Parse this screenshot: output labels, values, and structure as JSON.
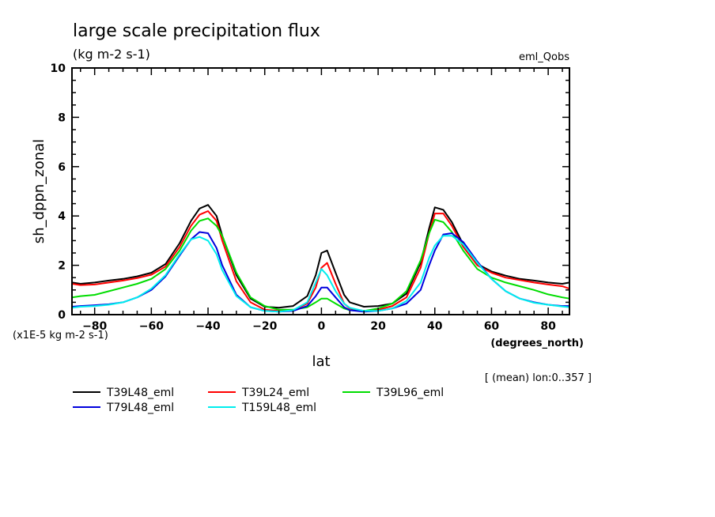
{
  "chart_data": {
    "type": "line",
    "title": "large scale precipitation flux",
    "subtitle": "(kg m-2 s-1)",
    "dataset_label": "eml_Qobs",
    "xlabel": "lat",
    "x_units": "(degrees_north)",
    "ylabel": "sh_dppn_zonal",
    "y_scale_note": "(x1E-5 kg m-2 s-1)",
    "averaging_note": "[ (mean) lon:0..357 ]",
    "xlim": [
      -88,
      87.5
    ],
    "ylim": [
      0,
      10
    ],
    "x_ticks": [
      -80,
      -60,
      -40,
      -20,
      0,
      20,
      40,
      60,
      80
    ],
    "x_tick_labels": [
      "-80",
      "-60",
      "-40",
      "-20",
      "0",
      "20",
      "40",
      "60",
      "80"
    ],
    "y_ticks": [
      0,
      2,
      4,
      6,
      8,
      10
    ],
    "y_tick_labels": [
      "0",
      "2",
      "4",
      "6",
      "8",
      "10"
    ],
    "grid": false,
    "legend_position": "bottom-left",
    "x": [
      -88,
      -85,
      -80,
      -75,
      -70,
      -65,
      -60,
      -55,
      -50,
      -46,
      -43,
      -40,
      -37,
      -35,
      -30,
      -25,
      -20,
      -15,
      -10,
      -5,
      -2,
      0,
      2,
      5,
      8,
      10,
      15,
      20,
      25,
      30,
      35,
      38,
      40,
      43,
      46,
      50,
      55,
      60,
      65,
      70,
      75,
      80,
      85,
      87.5
    ],
    "series": [
      {
        "name": "T39L48_eml",
        "color": "#000000",
        "values": [
          1.3,
          1.25,
          1.3,
          1.38,
          1.45,
          1.55,
          1.7,
          2.05,
          2.9,
          3.8,
          4.3,
          4.45,
          4.0,
          3.2,
          1.6,
          0.65,
          0.32,
          0.28,
          0.35,
          0.75,
          1.6,
          2.5,
          2.6,
          1.7,
          0.8,
          0.5,
          0.32,
          0.35,
          0.45,
          0.85,
          2.1,
          3.5,
          4.35,
          4.25,
          3.75,
          2.85,
          2.05,
          1.75,
          1.58,
          1.45,
          1.38,
          1.3,
          1.25,
          1.3
        ]
      },
      {
        "name": "T39L24_eml",
        "color": "#ff0000",
        "values": [
          1.25,
          1.2,
          1.22,
          1.3,
          1.38,
          1.48,
          1.62,
          1.95,
          2.75,
          3.6,
          4.05,
          4.2,
          3.8,
          3.0,
          1.35,
          0.5,
          0.2,
          0.15,
          0.18,
          0.45,
          1.1,
          1.9,
          2.1,
          1.25,
          0.45,
          0.25,
          0.15,
          0.2,
          0.35,
          0.7,
          1.9,
          3.3,
          4.1,
          4.1,
          3.6,
          2.75,
          2.0,
          1.7,
          1.5,
          1.4,
          1.3,
          1.22,
          1.15,
          1.05
        ]
      },
      {
        "name": "T39L96_eml",
        "color": "#00dd00",
        "values": [
          0.7,
          0.75,
          0.8,
          0.95,
          1.1,
          1.25,
          1.45,
          1.85,
          2.6,
          3.4,
          3.8,
          3.9,
          3.6,
          3.2,
          1.7,
          0.7,
          0.35,
          0.2,
          0.2,
          0.3,
          0.5,
          0.65,
          0.65,
          0.45,
          0.25,
          0.18,
          0.15,
          0.25,
          0.45,
          0.95,
          2.2,
          3.3,
          3.85,
          3.75,
          3.35,
          2.6,
          1.85,
          1.5,
          1.3,
          1.15,
          1.0,
          0.82,
          0.7,
          0.65
        ]
      },
      {
        "name": "T79L48_eml",
        "color": "#0000dd",
        "values": [
          0.32,
          0.35,
          0.38,
          0.42,
          0.5,
          0.7,
          1.0,
          1.55,
          2.4,
          3.05,
          3.35,
          3.3,
          2.7,
          2.0,
          0.8,
          0.3,
          0.15,
          0.12,
          0.15,
          0.35,
          0.75,
          1.1,
          1.1,
          0.7,
          0.3,
          0.18,
          0.12,
          0.15,
          0.25,
          0.45,
          1.0,
          2.0,
          2.6,
          3.25,
          3.3,
          2.95,
          2.15,
          1.45,
          0.95,
          0.65,
          0.5,
          0.4,
          0.35,
          0.35
        ]
      },
      {
        "name": "T159L48_eml",
        "color": "#00eeee",
        "values": [
          0.28,
          0.32,
          0.35,
          0.4,
          0.5,
          0.7,
          1.05,
          1.6,
          2.45,
          3.05,
          3.15,
          3.0,
          2.45,
          1.8,
          0.75,
          0.3,
          0.15,
          0.12,
          0.18,
          0.5,
          1.3,
          1.85,
          1.6,
          0.95,
          0.45,
          0.28,
          0.15,
          0.15,
          0.25,
          0.55,
          1.3,
          2.3,
          2.8,
          3.2,
          3.2,
          2.85,
          2.1,
          1.45,
          0.95,
          0.65,
          0.48,
          0.4,
          0.33,
          0.3
        ]
      }
    ]
  }
}
